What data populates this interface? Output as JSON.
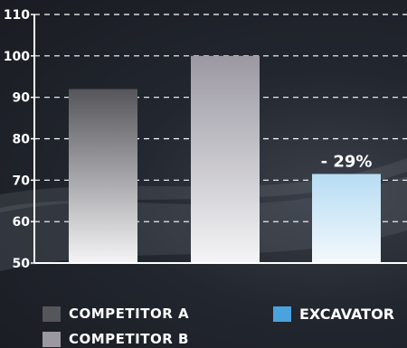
{
  "chart_data": {
    "type": "bar",
    "categories": [
      "COMPETITOR A",
      "COMPETITOR B",
      "EXCAVATOR"
    ],
    "values": [
      92,
      100,
      71.5
    ],
    "ylim": [
      50,
      110
    ],
    "yticks": [
      "50",
      "60",
      "70",
      "80",
      "90",
      "100",
      "110"
    ],
    "grid": true,
    "legend_position": "bottom",
    "title": "",
    "xlabel": "",
    "ylabel": "",
    "annotations": [
      {
        "category": "EXCAVATOR",
        "text": "- 29%"
      }
    ],
    "colors": {
      "competitor_a": "#55555a",
      "competitor_b": "#9b98a2",
      "excavator": "#4aa3dc"
    }
  },
  "legend": [
    {
      "label": "COMPETITOR A",
      "color": "#55555a"
    },
    {
      "label": "COMPETITOR B",
      "color": "#9b98a2"
    },
    {
      "label": "EXCAVATOR",
      "color": "#4aa3dc"
    }
  ]
}
